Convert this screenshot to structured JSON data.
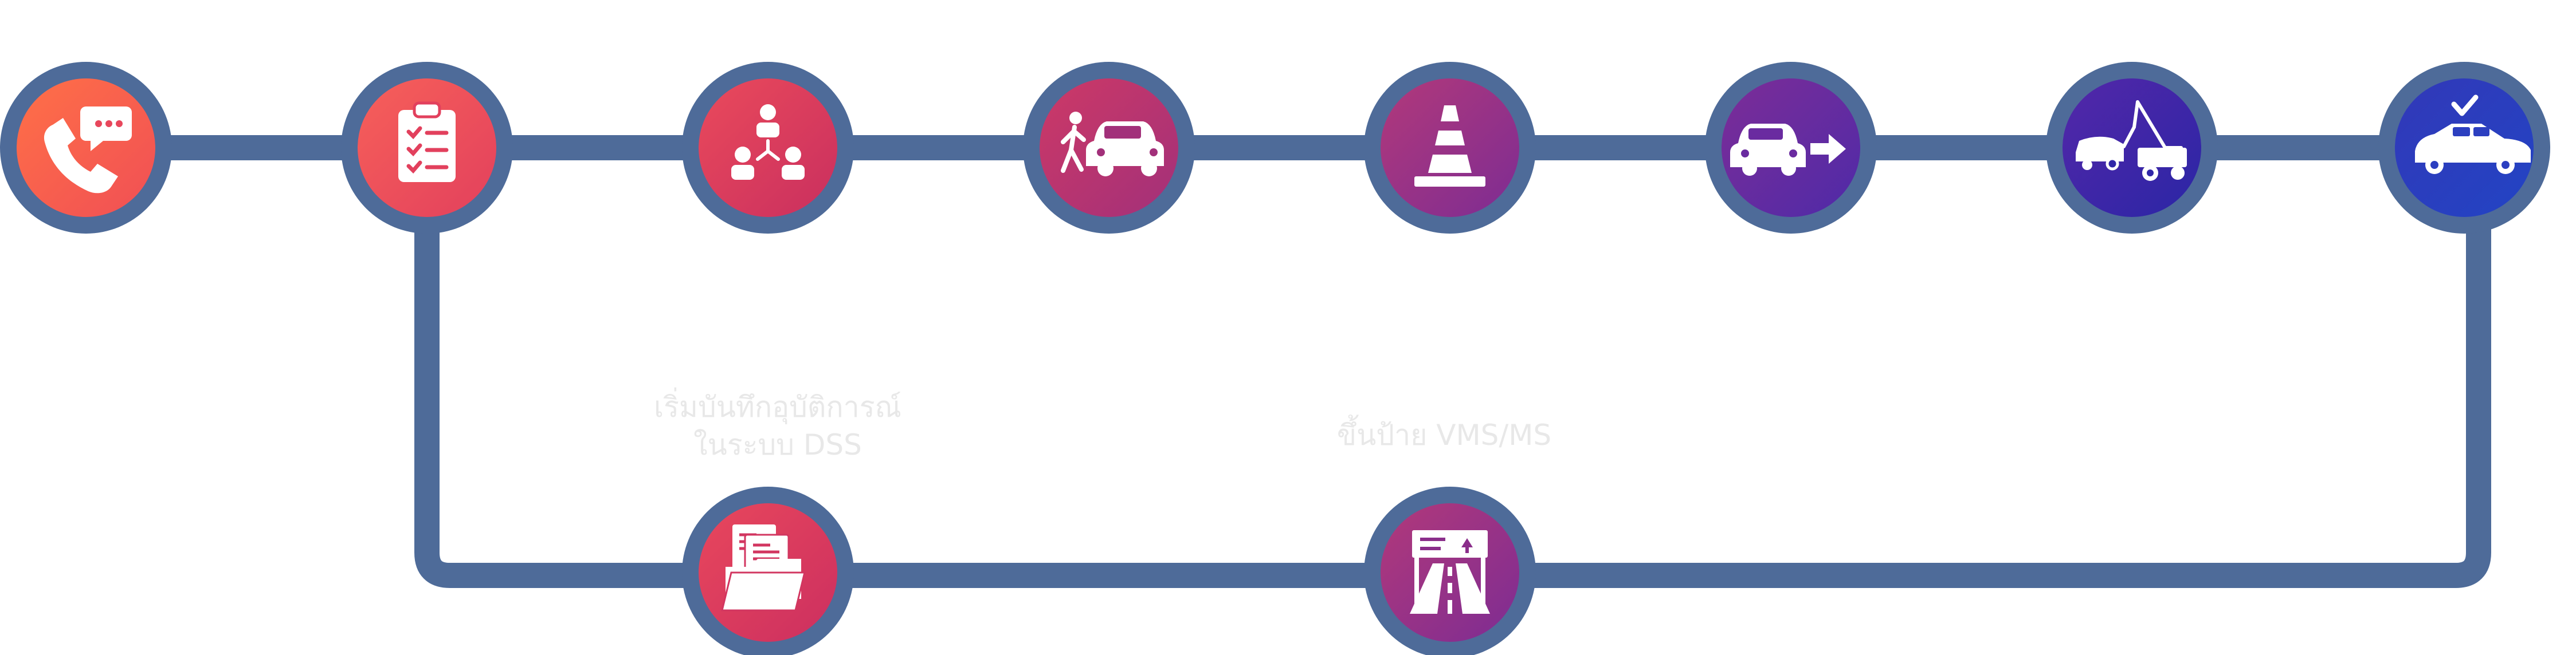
{
  "colors": {
    "connector": "#4e6b99",
    "ring": "#4e6b99",
    "icon": "#ffffff"
  },
  "steps": [
    {
      "icon": "phone-chat-icon",
      "gradient": [
        "#ff7047",
        "#f04f55"
      ]
    },
    {
      "icon": "clipboard-checklist-icon",
      "gradient": [
        "#f76059",
        "#e2405d"
      ]
    },
    {
      "icon": "team-hierarchy-icon",
      "gradient": [
        "#ea4a5b",
        "#c92f5f"
      ]
    },
    {
      "icon": "pedestrian-car-icon",
      "gradient": [
        "#cd3966",
        "#a2307a"
      ]
    },
    {
      "icon": "traffic-cone-icon",
      "gradient": [
        "#b2397a",
        "#7d2c93"
      ]
    },
    {
      "icon": "car-move-icon",
      "gradient": [
        "#7d2d97",
        "#4e2aa8"
      ]
    },
    {
      "icon": "tow-truck-icon",
      "gradient": [
        "#5427a8",
        "#2a26a6"
      ]
    },
    {
      "icon": "car-checked-icon",
      "gradient": [
        "#3238b8",
        "#2244c4"
      ]
    }
  ],
  "branch": [
    {
      "icon": "folder-documents-icon",
      "gradient": [
        "#e8475c",
        "#cc2f60"
      ],
      "label_lines": [
        "เริ่มบันทึกอุบัติการณ์",
        "ในระบบ DSS"
      ]
    },
    {
      "icon": "vms-sign-road-icon",
      "gradient": [
        "#b2397a",
        "#7d2c93"
      ],
      "label_lines": [
        "ขึ้นป้าย VMS/MS"
      ]
    }
  ]
}
